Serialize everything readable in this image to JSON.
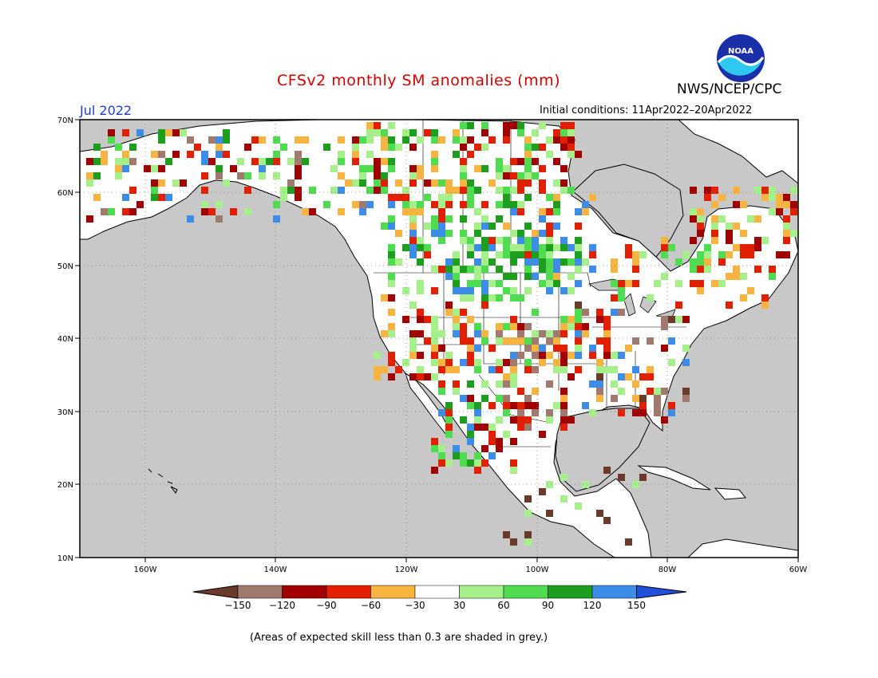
{
  "header": {
    "title": "CFSv2 monthly SM anomalies (mm)",
    "agency": "NWS/NCEP/CPC",
    "logo_text": "NOAA",
    "month": "Jul 2022",
    "initial_conditions": "Initial conditions: 11Apr2022–20Apr2022"
  },
  "map": {
    "lon_range": [
      -170,
      -60
    ],
    "lat_range": [
      10,
      70
    ],
    "lat_labels": [
      "70N",
      "60N",
      "50N",
      "40N",
      "30N",
      "20N",
      "10N"
    ],
    "lon_labels": [
      "160W",
      "140W",
      "120W",
      "100W",
      "80W",
      "60W"
    ],
    "colors": {
      "ocean_grey": "#c8c8c8",
      "land": "#ffffff",
      "coast": "#000000",
      "grid": "#808080"
    }
  },
  "legend": {
    "levels": [
      "−150",
      "−120",
      "−90",
      "−60",
      "−30",
      "30",
      "60",
      "90",
      "120",
      "150"
    ],
    "colors": [
      "#6b3a2a",
      "#a07a6e",
      "#a00000",
      "#e02000",
      "#f8b440",
      "#ffffff",
      "#a6f08c",
      "#50dc50",
      "#1e9e1e",
      "#3c8ce8",
      "#1e50dc"
    ]
  },
  "footnote": "(Areas of expected skill less than 0.3 are shaded in grey.)"
}
